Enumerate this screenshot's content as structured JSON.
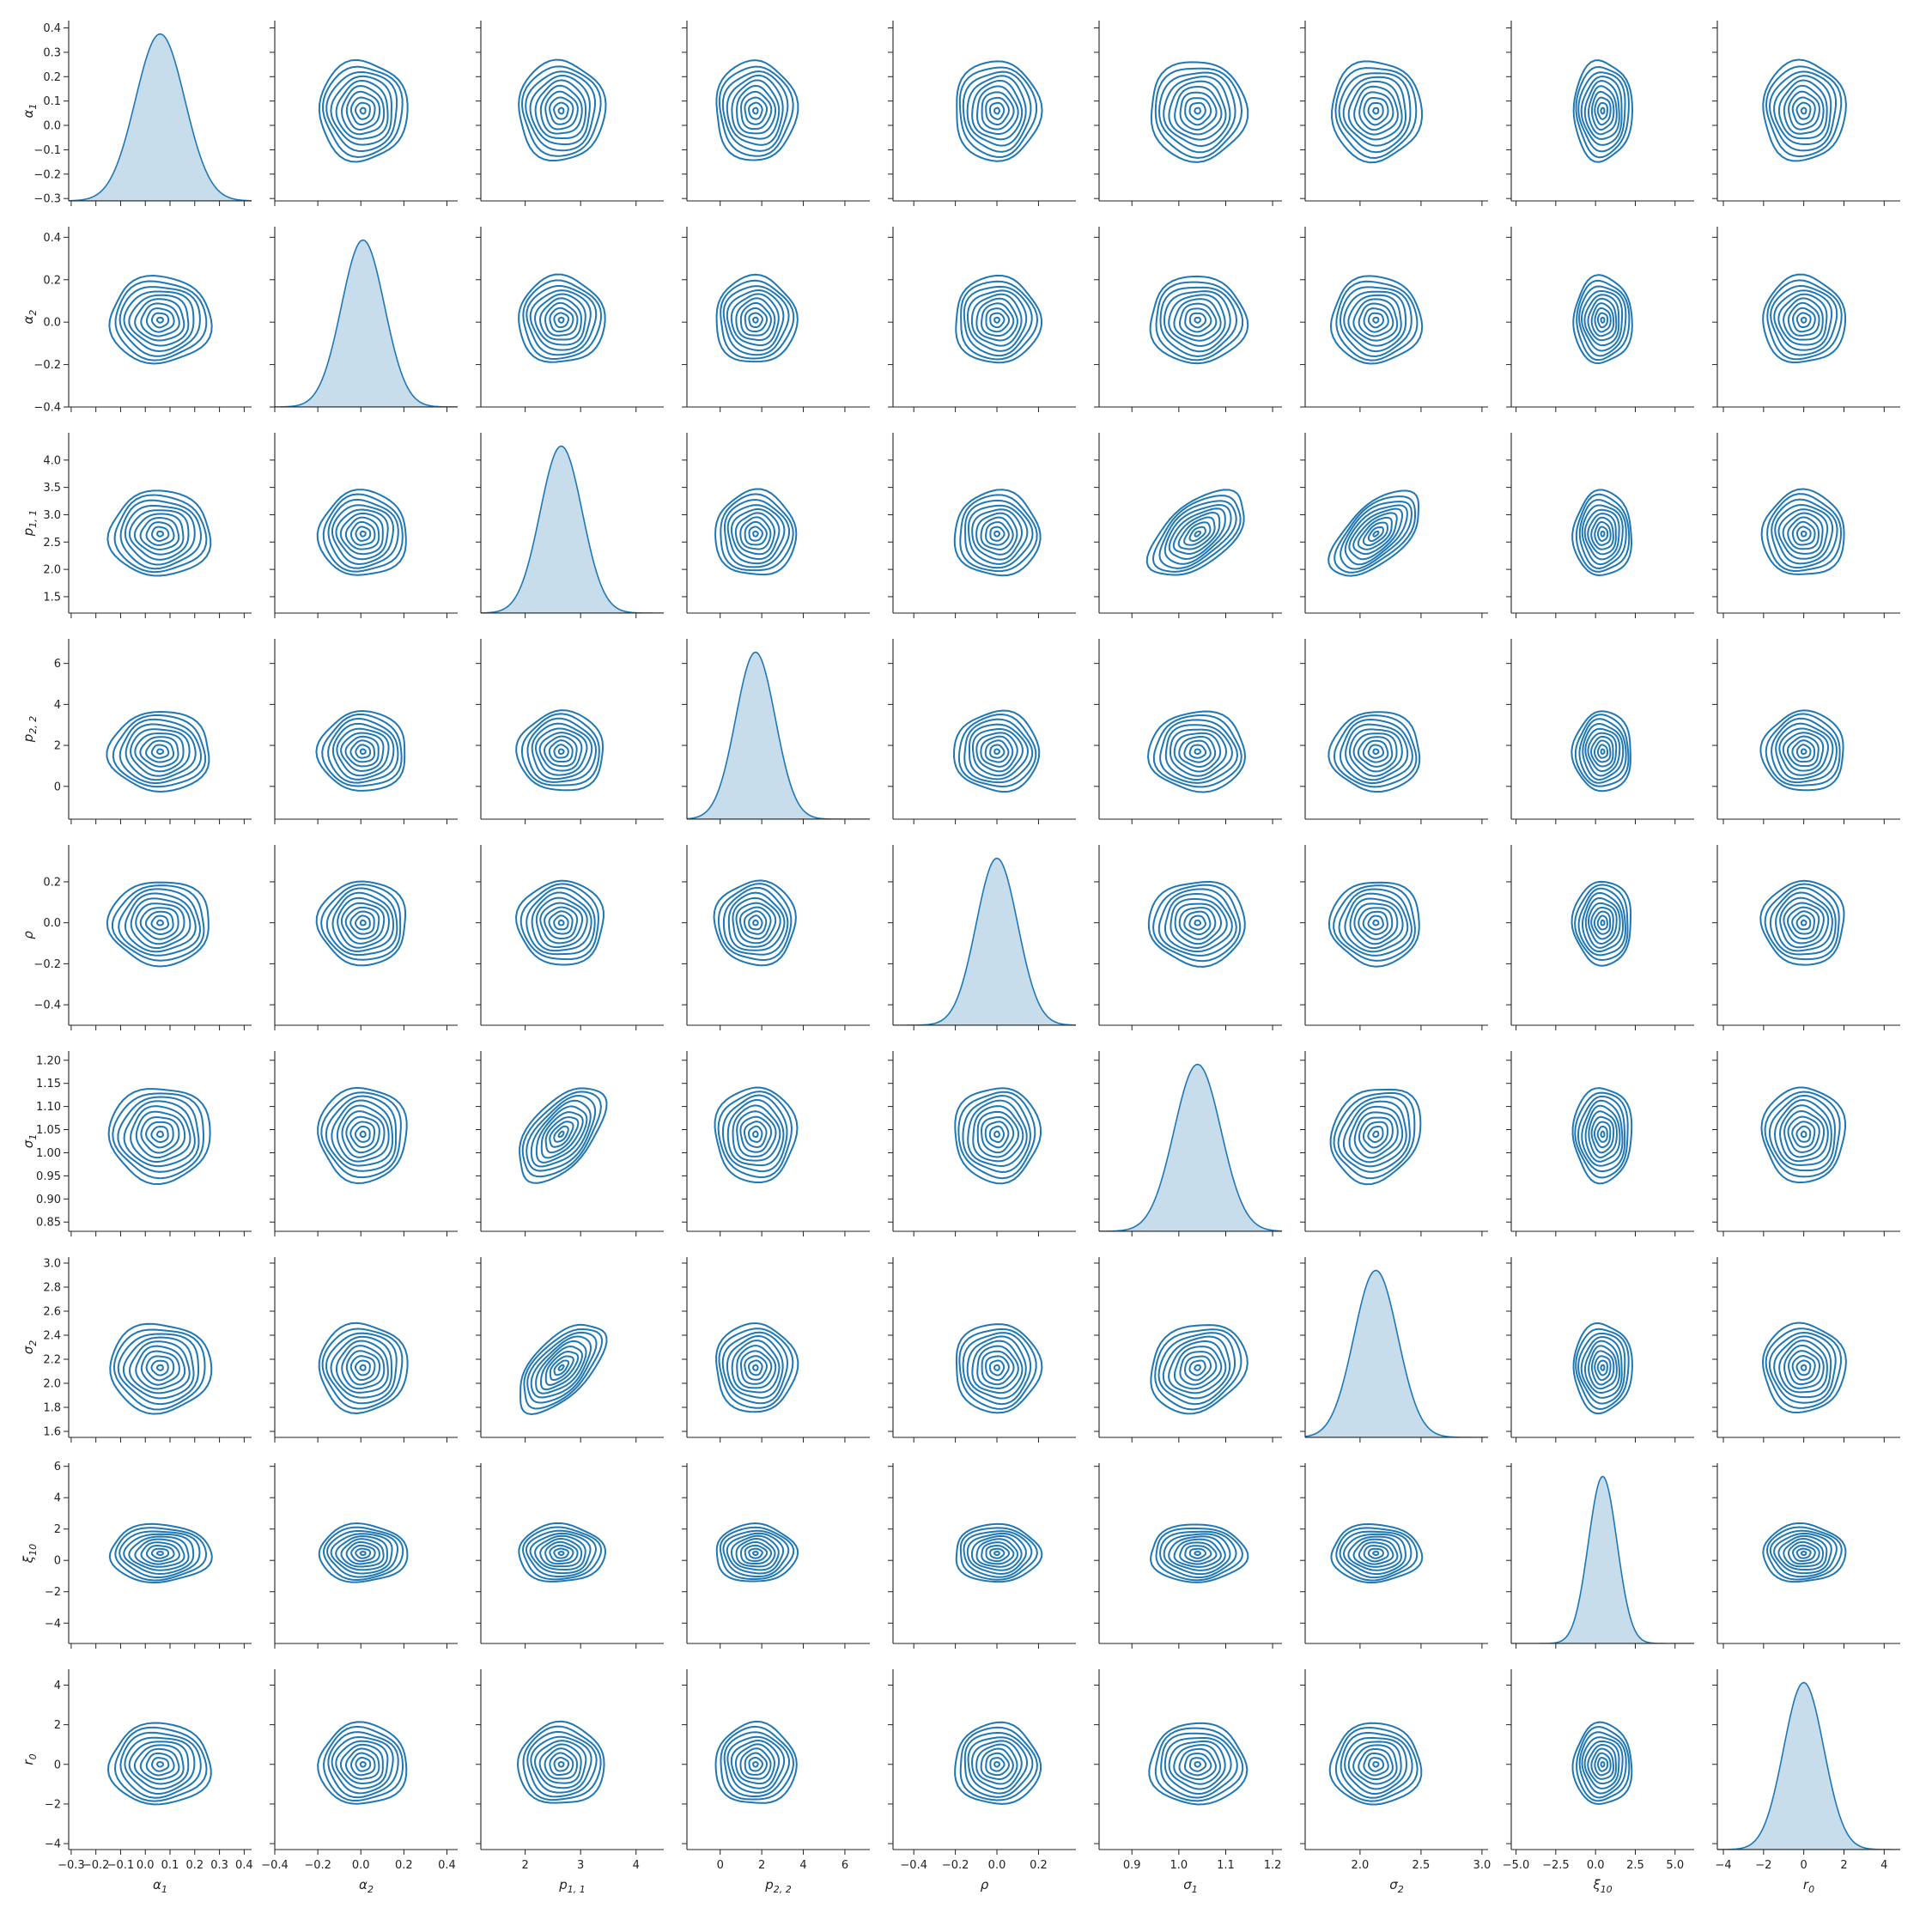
{
  "chart_data": {
    "type": "pairplot",
    "kind": "kde",
    "diag_kind": "kde",
    "color": "#1f77b4",
    "grid": false,
    "contour_levels": 10,
    "variables": [
      {
        "key": "alpha1",
        "base": "α",
        "sub": "1",
        "range": [
          -0.31,
          0.43
        ],
        "ticks": [
          -0.3,
          -0.2,
          -0.1,
          0.0,
          0.1,
          0.2,
          0.3,
          0.4
        ],
        "tick_labels": [
          "−0.3",
          "−0.2",
          "−0.1",
          "0.0",
          "0.1",
          "0.2",
          "0.3",
          "0.4"
        ],
        "center": 0.06,
        "spread": 0.1
      },
      {
        "key": "alpha2",
        "base": "α",
        "sub": "2",
        "range": [
          -0.4,
          0.45
        ],
        "ticks": [
          -0.4,
          -0.2,
          0.0,
          0.2,
          0.4
        ],
        "tick_labels": [
          "−0.4",
          "−0.2",
          "0.0",
          "0.2",
          "0.4"
        ],
        "center": 0.01,
        "spread": 0.1
      },
      {
        "key": "p11",
        "base": "p",
        "sub": "1, 1",
        "range": [
          1.2,
          4.5
        ],
        "ticks": [
          1.5,
          2.0,
          2.5,
          3.0,
          3.5,
          4.0
        ],
        "tick_labels": [
          "1.5",
          "2.0",
          "2.5",
          "3.0",
          "3.5",
          "4.0"
        ],
        "x_ticks": [
          2,
          3,
          4
        ],
        "x_tick_labels": [
          "2",
          "3",
          "4"
        ],
        "center": 2.65,
        "spread": 0.38
      },
      {
        "key": "p22",
        "base": "p",
        "sub": "2, 2",
        "range": [
          -1.6,
          7.2
        ],
        "ticks": [
          0,
          2,
          4,
          6
        ],
        "tick_labels": [
          "0",
          "2",
          "4",
          "6"
        ],
        "center": 1.7,
        "spread": 0.95
      },
      {
        "key": "rho",
        "base": "ρ",
        "sub": "",
        "range": [
          -0.5,
          0.38
        ],
        "ticks": [
          -0.4,
          -0.2,
          0.0,
          0.2
        ],
        "tick_labels": [
          "−0.4",
          "−0.2",
          "0.0",
          "0.2"
        ],
        "center": 0.0,
        "spread": 0.1
      },
      {
        "key": "sigma1",
        "base": "σ",
        "sub": "1",
        "range": [
          0.83,
          1.22
        ],
        "ticks": [
          0.85,
          0.9,
          0.95,
          1.0,
          1.05,
          1.1,
          1.15,
          1.2
        ],
        "tick_labels": [
          "0.85",
          "0.90",
          "0.95",
          "1.00",
          "1.05",
          "1.10",
          "1.15",
          "1.20"
        ],
        "x_ticks": [
          0.9,
          1.0,
          1.1,
          1.2
        ],
        "x_tick_labels": [
          "0.9",
          "1.0",
          "1.1",
          "1.2"
        ],
        "center": 1.04,
        "spread": 0.05
      },
      {
        "key": "sigma2",
        "base": "σ",
        "sub": "2",
        "range": [
          1.55,
          3.05
        ],
        "ticks": [
          1.6,
          1.8,
          2.0,
          2.2,
          2.4,
          2.6,
          2.8,
          3.0
        ],
        "tick_labels": [
          "1.6",
          "1.8",
          "2.0",
          "2.2",
          "2.4",
          "2.6",
          "2.8",
          "3.0"
        ],
        "x_ticks": [
          2.0,
          2.5,
          3.0
        ],
        "x_tick_labels": [
          "2.0",
          "2.5",
          "3.0"
        ],
        "center": 2.13,
        "spread": 0.18
      },
      {
        "key": "xi10",
        "base": "ξ",
        "sub": "10",
        "range": [
          -5.3,
          6.2
        ],
        "ticks": [
          -4,
          -2,
          0,
          2,
          4,
          6
        ],
        "tick_labels": [
          "−4",
          "−2",
          "0",
          "2",
          "4",
          "6"
        ],
        "x_ticks": [
          -5.0,
          -2.5,
          0.0,
          2.5,
          5.0
        ],
        "x_tick_labels": [
          "−5.0",
          "−2.5",
          "0.0",
          "2.5",
          "5.0"
        ],
        "center": 0.45,
        "spread": 0.9
      },
      {
        "key": "r0",
        "base": "r",
        "sub": "0",
        "range": [
          -4.3,
          4.8
        ],
        "ticks": [
          -4,
          -2,
          0,
          2,
          4
        ],
        "tick_labels": [
          "−4",
          "−2",
          "0",
          "2",
          "4"
        ],
        "center": 0.0,
        "spread": 1.0
      }
    ],
    "correlations": [
      {
        "x": "p11",
        "y": "sigma1",
        "r": 0.55
      },
      {
        "x": "p11",
        "y": "sigma2",
        "r": 0.6
      },
      {
        "x": "sigma1",
        "y": "sigma2",
        "r": 0.18
      }
    ]
  }
}
